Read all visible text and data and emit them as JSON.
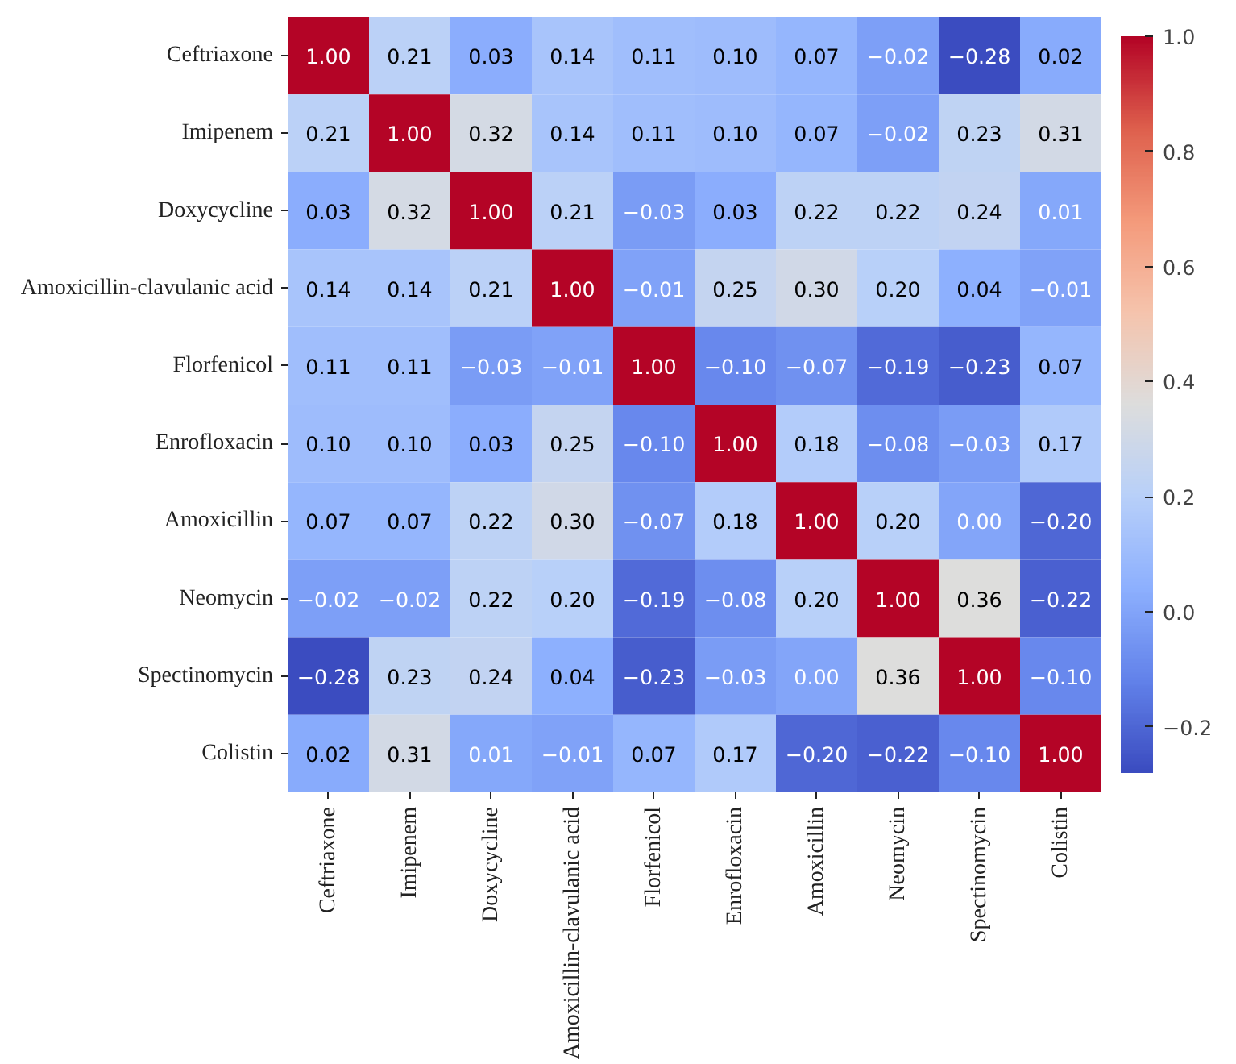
{
  "chart_data": {
    "type": "heatmap",
    "categories": [
      "Ceftriaxone",
      "Imipenem",
      "Doxycycline",
      "Amoxicillin-clavulanic acid",
      "Florfenicol",
      "Enrofloxacin",
      "Amoxicillin",
      "Neomycin",
      "Spectinomycin",
      "Colistin"
    ],
    "y_categories": [
      "Ceftriaxone",
      "Imipenem",
      "Doxycycline",
      "Amoxicillin-clavulanic acid",
      "Florfenicol",
      "Enrofloxacin",
      "Amoxicillin",
      "Neomycin",
      "Spectinomycin",
      "Colistin"
    ],
    "cells": [
      [
        1.0,
        0.21,
        0.03,
        0.14,
        0.11,
        0.1,
        0.07,
        -0.02,
        -0.28,
        0.02
      ],
      [
        0.21,
        1.0,
        0.32,
        0.14,
        0.11,
        0.1,
        0.07,
        -0.02,
        0.23,
        0.31
      ],
      [
        0.03,
        0.32,
        1.0,
        0.21,
        -0.03,
        0.03,
        0.22,
        0.22,
        0.24,
        0.01
      ],
      [
        0.14,
        0.14,
        0.21,
        1.0,
        -0.01,
        0.25,
        0.3,
        0.2,
        0.04,
        -0.01
      ],
      [
        0.11,
        0.11,
        -0.03,
        -0.01,
        1.0,
        -0.1,
        -0.07,
        -0.19,
        -0.23,
        0.07
      ],
      [
        0.1,
        0.1,
        0.03,
        0.25,
        -0.1,
        1.0,
        0.18,
        -0.08,
        -0.03,
        0.17
      ],
      [
        0.07,
        0.07,
        0.22,
        0.3,
        -0.07,
        0.18,
        1.0,
        0.2,
        0.0,
        -0.2
      ],
      [
        -0.02,
        -0.02,
        0.22,
        0.2,
        -0.19,
        -0.08,
        0.2,
        1.0,
        0.36,
        -0.22
      ],
      [
        -0.28,
        0.23,
        0.24,
        0.04,
        -0.23,
        -0.03,
        0.0,
        0.36,
        1.0,
        -0.1
      ],
      [
        0.02,
        0.31,
        0.01,
        -0.01,
        0.07,
        0.17,
        -0.2,
        -0.22,
        -0.1,
        1.0
      ]
    ],
    "cell_labels": [
      [
        "1.00",
        "0.21",
        "0.03",
        "0.14",
        "0.11",
        "0.10",
        "0.07",
        "−0.02",
        "−0.28",
        "0.02"
      ],
      [
        "0.21",
        "1.00",
        "0.32",
        "0.14",
        "0.11",
        "0.10",
        "0.07",
        "−0.02",
        "0.23",
        "0.31"
      ],
      [
        "0.03",
        "0.32",
        "1.00",
        "0.21",
        "−0.03",
        "0.03",
        "0.22",
        "0.22",
        "0.24",
        "0.01"
      ],
      [
        "0.14",
        "0.14",
        "0.21",
        "1.00",
        "−0.01",
        "0.25",
        "0.30",
        "0.20",
        "0.04",
        "−0.01"
      ],
      [
        "0.11",
        "0.11",
        "−0.03",
        "−0.01",
        "1.00",
        "−0.10",
        "−0.07",
        "−0.19",
        "−0.23",
        "0.07"
      ],
      [
        "0.10",
        "0.10",
        "0.03",
        "0.25",
        "−0.10",
        "1.00",
        "0.18",
        "−0.08",
        "−0.03",
        "0.17"
      ],
      [
        "0.07",
        "0.07",
        "0.22",
        "0.30",
        "−0.07",
        "0.18",
        "1.00",
        "0.20",
        "0.00",
        "−0.20"
      ],
      [
        "−0.02",
        "−0.02",
        "0.22",
        "0.20",
        "−0.19",
        "−0.08",
        "0.20",
        "1.00",
        "0.36",
        "−0.22"
      ],
      [
        "−0.28",
        "0.23",
        "0.24",
        "0.04",
        "−0.23",
        "−0.03",
        "0.00",
        "0.36",
        "1.00",
        "−0.10"
      ],
      [
        "0.02",
        "0.31",
        "0.01",
        "−0.01",
        "0.07",
        "0.17",
        "−0.20",
        "−0.22",
        "−0.10",
        "1.00"
      ]
    ],
    "clim": [
      -0.28,
      1.0
    ],
    "cticks": [
      {
        "value": -0.2,
        "label": "−0.2"
      },
      {
        "value": 0.0,
        "label": "0.0"
      },
      {
        "value": 0.2,
        "label": "0.2"
      },
      {
        "value": 0.4,
        "label": "0.4"
      },
      {
        "value": 0.6,
        "label": "0.6"
      },
      {
        "value": 0.8,
        "label": "0.8"
      },
      {
        "value": 1.0,
        "label": "1.0"
      }
    ]
  }
}
